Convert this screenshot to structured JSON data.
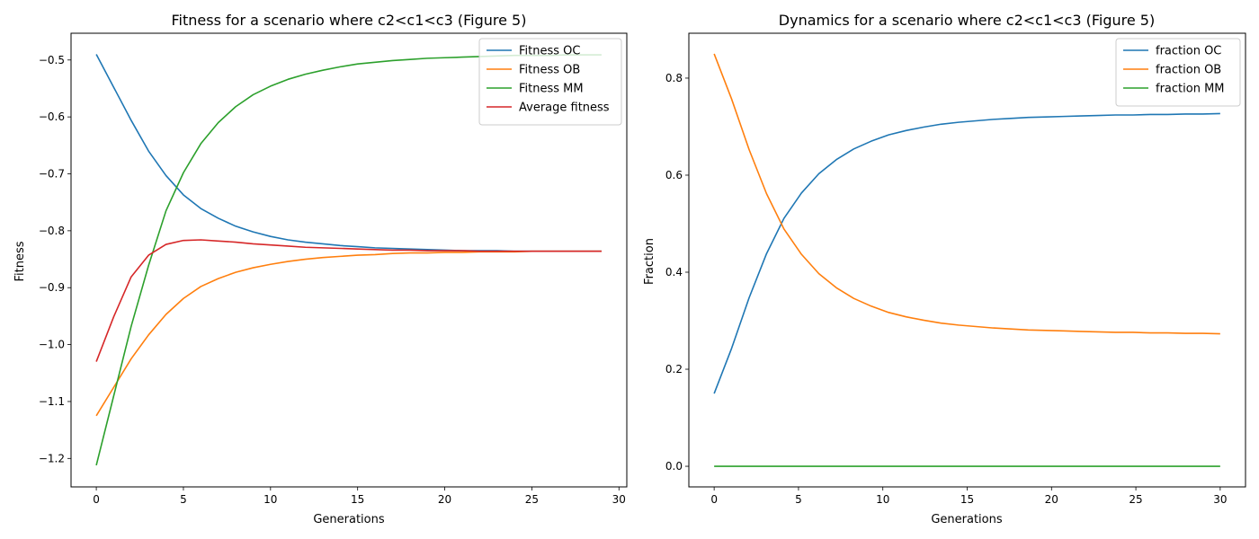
{
  "chart_data": [
    {
      "type": "line",
      "title": "Fitness for a scenario where c2<c1<c3 (Figure 5)",
      "xlabel": "Generations",
      "ylabel": "Fitness",
      "xlim": [
        -1.45,
        30.45
      ],
      "ylim": [
        -1.25,
        -0.453
      ],
      "xticks": [
        0,
        5,
        10,
        15,
        20,
        25,
        30
      ],
      "yticks": [
        -1.2,
        -1.1,
        -1.0,
        -0.9,
        -0.8,
        -0.7,
        -0.6,
        -0.5
      ],
      "ytick_labels": [
        "−1.2",
        "−1.1",
        "−1.0",
        "−0.9",
        "−0.8",
        "−0.7",
        "−0.6",
        "−0.5"
      ],
      "legend": "top-right",
      "grid": false,
      "x": [
        0,
        1,
        2,
        3,
        4,
        5,
        6,
        7,
        8,
        9,
        10,
        11,
        12,
        13,
        14,
        15,
        16,
        17,
        18,
        19,
        20,
        21,
        22,
        23,
        24,
        25,
        26,
        27,
        28,
        29
      ],
      "series": [
        {
          "name": "Fitness OC",
          "color": "#1f77b4",
          "values": [
            -0.49,
            -0.548,
            -0.606,
            -0.66,
            -0.703,
            -0.737,
            -0.761,
            -0.778,
            -0.792,
            -0.802,
            -0.81,
            -0.816,
            -0.82,
            -0.823,
            -0.826,
            -0.828,
            -0.83,
            -0.831,
            -0.832,
            -0.833,
            -0.834,
            -0.835,
            -0.835,
            -0.835,
            -0.836,
            -0.836,
            -0.836,
            -0.836,
            -0.836,
            -0.836
          ]
        },
        {
          "name": "Fitness OB",
          "color": "#ff7f0e",
          "values": [
            -1.125,
            -1.075,
            -1.025,
            -0.983,
            -0.947,
            -0.919,
            -0.898,
            -0.884,
            -0.873,
            -0.865,
            -0.859,
            -0.854,
            -0.85,
            -0.847,
            -0.845,
            -0.843,
            -0.842,
            -0.84,
            -0.839,
            -0.839,
            -0.838,
            -0.838,
            -0.837,
            -0.837,
            -0.837,
            -0.836,
            -0.836,
            -0.836,
            -0.836,
            -0.836
          ]
        },
        {
          "name": "Fitness MM",
          "color": "#2ca02c",
          "values": [
            -1.212,
            -1.09,
            -0.968,
            -0.861,
            -0.765,
            -0.698,
            -0.647,
            -0.61,
            -0.582,
            -0.561,
            -0.546,
            -0.534,
            -0.525,
            -0.518,
            -0.512,
            -0.507,
            -0.504,
            -0.501,
            -0.499,
            -0.497,
            -0.496,
            -0.495,
            -0.494,
            -0.493,
            -0.492,
            -0.492,
            -0.492,
            -0.491,
            -0.491,
            -0.491
          ]
        },
        {
          "name": "Average fitness",
          "color": "#d62728",
          "values": [
            -1.03,
            -0.951,
            -0.881,
            -0.843,
            -0.824,
            -0.817,
            -0.816,
            -0.818,
            -0.82,
            -0.823,
            -0.825,
            -0.827,
            -0.829,
            -0.83,
            -0.831,
            -0.832,
            -0.833,
            -0.834,
            -0.834,
            -0.835,
            -0.835,
            -0.835,
            -0.836,
            -0.836,
            -0.836,
            -0.836,
            -0.836,
            -0.836,
            -0.836,
            -0.836
          ]
        }
      ]
    },
    {
      "type": "line",
      "title": "Dynamics for a scenario where c2<c1<c3 (Figure 5)",
      "xlabel": "Generations",
      "ylabel": "Fraction",
      "xlim": [
        -1.5,
        31.5
      ],
      "ylim": [
        -0.0425,
        0.8925
      ],
      "xticks": [
        0,
        5,
        10,
        15,
        20,
        25,
        30
      ],
      "yticks": [
        0.0,
        0.2,
        0.4,
        0.6,
        0.8
      ],
      "ytick_labels": [
        "0.0",
        "0.2",
        "0.4",
        "0.6",
        "0.8"
      ],
      "legend": "top-right",
      "grid": false,
      "x": [
        0,
        1.034,
        2.069,
        3.103,
        4.138,
        5.172,
        6.207,
        7.241,
        8.276,
        9.31,
        10.345,
        11.379,
        12.414,
        13.448,
        14.483,
        15.517,
        16.552,
        17.586,
        18.621,
        19.655,
        20.69,
        21.724,
        22.759,
        23.793,
        24.828,
        25.862,
        26.897,
        27.931,
        28.966,
        30
      ],
      "series": [
        {
          "name": "fraction OC",
          "color": "#1f77b4",
          "values": [
            0.15,
            0.243,
            0.347,
            0.438,
            0.511,
            0.563,
            0.603,
            0.632,
            0.654,
            0.67,
            0.683,
            0.692,
            0.699,
            0.705,
            0.709,
            0.712,
            0.715,
            0.717,
            0.719,
            0.72,
            0.721,
            0.722,
            0.723,
            0.724,
            0.724,
            0.725,
            0.725,
            0.726,
            0.726,
            0.727
          ]
        },
        {
          "name": "fraction OB",
          "color": "#ff7f0e",
          "values": [
            0.85,
            0.757,
            0.653,
            0.562,
            0.489,
            0.437,
            0.397,
            0.368,
            0.346,
            0.33,
            0.317,
            0.308,
            0.301,
            0.295,
            0.291,
            0.288,
            0.285,
            0.283,
            0.281,
            0.28,
            0.279,
            0.278,
            0.277,
            0.276,
            0.276,
            0.275,
            0.275,
            0.274,
            0.274,
            0.273
          ]
        },
        {
          "name": "fraction MM",
          "color": "#2ca02c",
          "values": [
            0,
            0,
            0,
            0,
            0,
            0,
            0,
            0,
            0,
            0,
            0,
            0,
            0,
            0,
            0,
            0,
            0,
            0,
            0,
            0,
            0,
            0,
            0,
            0,
            0,
            0,
            0,
            0,
            0,
            0
          ]
        }
      ]
    }
  ]
}
